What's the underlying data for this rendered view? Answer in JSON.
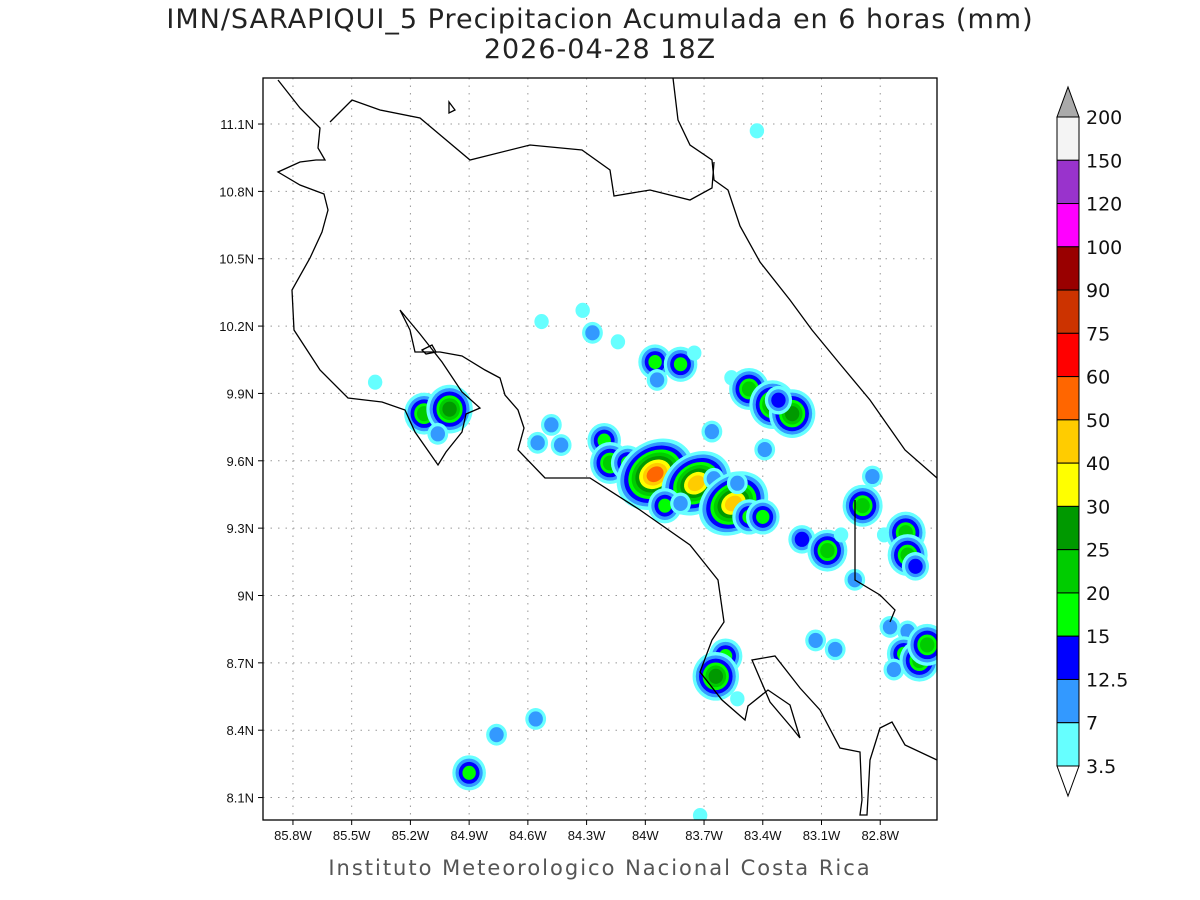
{
  "title": {
    "line1": "IMN/SARAPIQUI_5 Precipitacion Acumulada en 6 horas (mm)",
    "line2": "2026-04-28 18Z"
  },
  "footer": "Instituto Meteorologico Nacional Costa Rica",
  "map": {
    "lon_range": [
      -85.953,
      -82.51
    ],
    "lat_range": [
      8.0,
      11.305
    ],
    "lon_ticks": [
      {
        "v": -85.8,
        "label": "85.8W"
      },
      {
        "v": -85.5,
        "label": "85.5W"
      },
      {
        "v": -85.2,
        "label": "85.2W"
      },
      {
        "v": -84.9,
        "label": "84.9W"
      },
      {
        "v": -84.6,
        "label": "84.6W"
      },
      {
        "v": -84.3,
        "label": "84.3W"
      },
      {
        "v": -84.0,
        "label": "84W"
      },
      {
        "v": -83.7,
        "label": "83.7W"
      },
      {
        "v": -83.4,
        "label": "83.4W"
      },
      {
        "v": -83.1,
        "label": "83.1W"
      },
      {
        "v": -82.8,
        "label": "82.8W"
      }
    ],
    "lat_ticks": [
      {
        "v": 11.1,
        "label": "11.1N"
      },
      {
        "v": 10.8,
        "label": "10.8N"
      },
      {
        "v": 10.5,
        "label": "10.5N"
      },
      {
        "v": 10.2,
        "label": "10.2N"
      },
      {
        "v": 9.9,
        "label": "9.9N"
      },
      {
        "v": 9.6,
        "label": "9.6N"
      },
      {
        "v": 9.3,
        "label": "9.3N"
      },
      {
        "v": 9.0,
        "label": "9N"
      },
      {
        "v": 8.7,
        "label": "8.7N"
      },
      {
        "v": 8.4,
        "label": "8.4N"
      },
      {
        "v": 8.1,
        "label": "8.1N"
      }
    ]
  },
  "colorbar": {
    "levels": [
      "200",
      "150",
      "120",
      "100",
      "90",
      "75",
      "60",
      "50",
      "40",
      "30",
      "25",
      "20",
      "15",
      "12.5",
      "7",
      "3.5"
    ],
    "colors": [
      "#f4f4f4",
      "#9933cc",
      "#ff00ff",
      "#990000",
      "#cc3300",
      "#ff0000",
      "#ff6600",
      "#ffcc00",
      "#ffff00",
      "#009900",
      "#00cc00",
      "#00ff00",
      "#0000ff",
      "#3399ff",
      "#66ffff"
    ],
    "over_color": "#aaaaaa",
    "under_color": "#ffffff"
  },
  "precip_cells": [
    {
      "lon": -85.13,
      "lat": 9.81,
      "max": 20
    },
    {
      "lon": -85.0,
      "lat": 9.83,
      "max": 25
    },
    {
      "lon": -85.06,
      "lat": 9.72,
      "max": 7
    },
    {
      "lon": -85.38,
      "lat": 9.95,
      "max": 3.5
    },
    {
      "lon": -84.9,
      "lat": 8.21,
      "max": 15
    },
    {
      "lon": -84.76,
      "lat": 8.38,
      "max": 7
    },
    {
      "lon": -84.56,
      "lat": 8.45,
      "max": 7
    },
    {
      "lon": -84.53,
      "lat": 10.22,
      "max": 3.5
    },
    {
      "lon": -84.32,
      "lat": 10.27,
      "max": 3.5
    },
    {
      "lon": -84.27,
      "lat": 10.17,
      "max": 7
    },
    {
      "lon": -84.14,
      "lat": 10.13,
      "max": 3.5
    },
    {
      "lon": -83.95,
      "lat": 10.04,
      "max": 15
    },
    {
      "lon": -83.82,
      "lat": 10.03,
      "max": 15
    },
    {
      "lon": -83.75,
      "lat": 10.08,
      "max": 3.5
    },
    {
      "lon": -83.94,
      "lat": 9.96,
      "max": 7
    },
    {
      "lon": -83.56,
      "lat": 9.97,
      "max": 3.5
    },
    {
      "lon": -83.47,
      "lat": 9.92,
      "max": 20
    },
    {
      "lon": -83.35,
      "lat": 9.85,
      "max": 25
    },
    {
      "lon": -83.25,
      "lat": 9.81,
      "max": 25
    },
    {
      "lon": -83.32,
      "lat": 9.87,
      "max": 12.5
    },
    {
      "lon": -84.48,
      "lat": 9.76,
      "max": 7
    },
    {
      "lon": -84.55,
      "lat": 9.68,
      "max": 7
    },
    {
      "lon": -84.43,
      "lat": 9.67,
      "max": 7
    },
    {
      "lon": -84.21,
      "lat": 9.69,
      "max": 15
    },
    {
      "lon": -84.18,
      "lat": 9.59,
      "max": 20
    },
    {
      "lon": -84.09,
      "lat": 9.59,
      "max": 15
    },
    {
      "lon": -83.95,
      "lat": 9.54,
      "max": 50
    },
    {
      "lon": -83.74,
      "lat": 9.5,
      "max": 40
    },
    {
      "lon": -83.65,
      "lat": 9.52,
      "max": 7
    },
    {
      "lon": -83.9,
      "lat": 9.4,
      "max": 15
    },
    {
      "lon": -83.82,
      "lat": 9.41,
      "max": 7
    },
    {
      "lon": -83.55,
      "lat": 9.41,
      "max": 40
    },
    {
      "lon": -83.47,
      "lat": 9.35,
      "max": 15
    },
    {
      "lon": -83.4,
      "lat": 9.35,
      "max": 15
    },
    {
      "lon": -83.53,
      "lat": 9.5,
      "max": 7
    },
    {
      "lon": -83.39,
      "lat": 9.65,
      "max": 7
    },
    {
      "lon": -83.66,
      "lat": 9.73,
      "max": 7
    },
    {
      "lon": -83.2,
      "lat": 9.25,
      "max": 12.5
    },
    {
      "lon": -83.07,
      "lat": 9.2,
      "max": 20
    },
    {
      "lon": -83.0,
      "lat": 9.27,
      "max": 3.5
    },
    {
      "lon": -82.84,
      "lat": 9.53,
      "max": 7
    },
    {
      "lon": -82.89,
      "lat": 9.4,
      "max": 20
    },
    {
      "lon": -82.78,
      "lat": 9.27,
      "max": 3.5
    },
    {
      "lon": -82.67,
      "lat": 9.28,
      "max": 20
    },
    {
      "lon": -82.66,
      "lat": 9.18,
      "max": 20
    },
    {
      "lon": -82.62,
      "lat": 9.13,
      "max": 12.5
    },
    {
      "lon": -82.93,
      "lat": 9.07,
      "max": 7
    },
    {
      "lon": -83.13,
      "lat": 8.8,
      "max": 7
    },
    {
      "lon": -83.03,
      "lat": 8.76,
      "max": 7
    },
    {
      "lon": -82.75,
      "lat": 8.86,
      "max": 7
    },
    {
      "lon": -82.66,
      "lat": 8.84,
      "max": 7
    },
    {
      "lon": -82.68,
      "lat": 8.74,
      "max": 15
    },
    {
      "lon": -82.73,
      "lat": 8.67,
      "max": 7
    },
    {
      "lon": -82.6,
      "lat": 8.71,
      "max": 20
    },
    {
      "lon": -82.56,
      "lat": 8.78,
      "max": 20
    },
    {
      "lon": -83.59,
      "lat": 8.73,
      "max": 15
    },
    {
      "lon": -83.64,
      "lat": 8.64,
      "max": 25
    },
    {
      "lon": -83.53,
      "lat": 8.54,
      "max": 3.5
    },
    {
      "lon": -83.72,
      "lat": 8.02,
      "max": 3.5
    },
    {
      "lon": -83.43,
      "lat": 11.07,
      "max": 3.5
    }
  ]
}
